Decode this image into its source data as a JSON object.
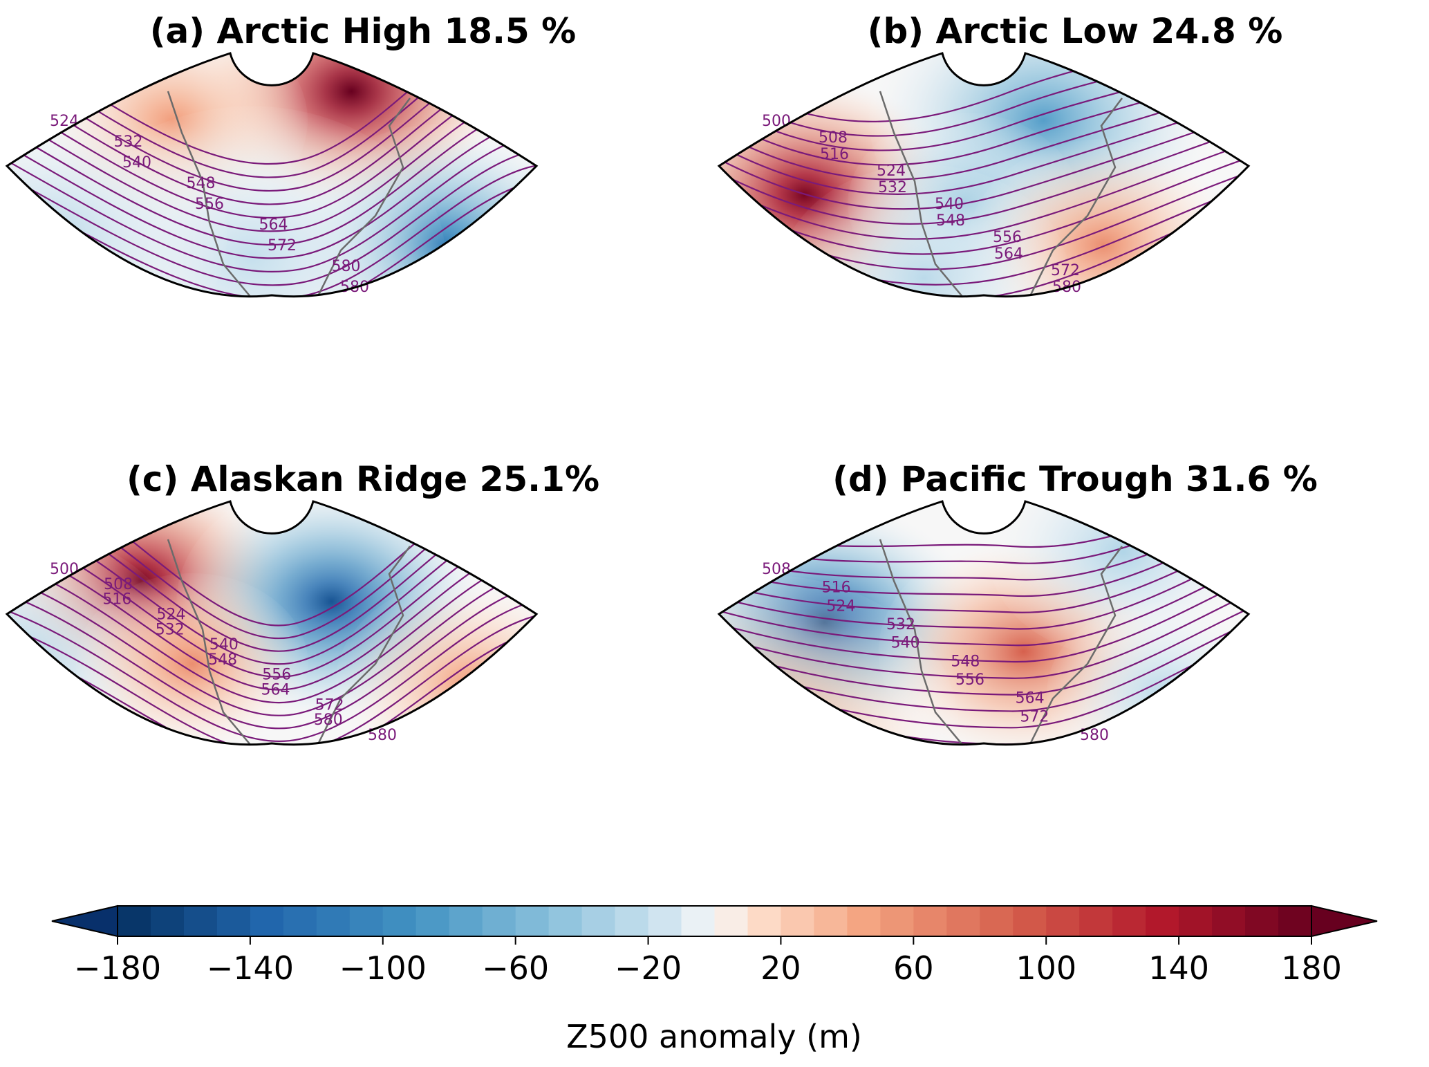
{
  "panels": [
    {
      "id": "a",
      "title": "(a) Arctic High 18.5 %",
      "anomalies": [
        {
          "lon": -85,
          "lat": 75,
          "value": 180,
          "spread": 0.16
        },
        {
          "lon": -130,
          "lat": 68,
          "value": 50,
          "spread": 0.14
        },
        {
          "lon": -62,
          "lat": 38,
          "value": -110,
          "spread": 0.16
        },
        {
          "lon": -110,
          "lat": 35,
          "value": -20,
          "spread": 0.2
        },
        {
          "lon": -160,
          "lat": 40,
          "value": -25,
          "spread": 0.18
        }
      ],
      "contour_labels": [
        "524",
        "532",
        "540",
        "548",
        "556",
        "564",
        "572",
        "580",
        "580"
      ]
    },
    {
      "id": "b",
      "title": "(b) Arctic Low 24.8 %",
      "anomalies": [
        {
          "lon": -150,
          "lat": 50,
          "value": 170,
          "spread": 0.16
        },
        {
          "lon": -90,
          "lat": 68,
          "value": -80,
          "spread": 0.18
        },
        {
          "lon": -110,
          "lat": 48,
          "value": -45,
          "spread": 0.12
        },
        {
          "lon": -75,
          "lat": 38,
          "value": 60,
          "spread": 0.14
        },
        {
          "lon": -120,
          "lat": 30,
          "value": -25,
          "spread": 0.15
        }
      ],
      "contour_labels": [
        "500",
        "508",
        "516",
        "524",
        "532",
        "540",
        "548",
        "556",
        "564",
        "572",
        "580"
      ]
    },
    {
      "id": "c",
      "title": "(c) Alaskan Ridge 25.1%",
      "anomalies": [
        {
          "lon": -138,
          "lat": 65,
          "value": 170,
          "spread": 0.15
        },
        {
          "lon": -90,
          "lat": 60,
          "value": -150,
          "spread": 0.16
        },
        {
          "lon": -55,
          "lat": 40,
          "value": 50,
          "spread": 0.14
        },
        {
          "lon": -170,
          "lat": 45,
          "value": -30,
          "spread": 0.18
        },
        {
          "lon": -125,
          "lat": 45,
          "value": 60,
          "spread": 0.12
        }
      ],
      "contour_labels": [
        "500",
        "508",
        "516",
        "524",
        "532",
        "540",
        "548",
        "556",
        "564",
        "572",
        "580",
        "580"
      ]
    },
    {
      "id": "d",
      "title": "(d) Pacific Trough 31.6 %",
      "anomalies": [
        {
          "lon": -145,
          "lat": 55,
          "value": -160,
          "spread": 0.16
        },
        {
          "lon": -95,
          "lat": 48,
          "value": 90,
          "spread": 0.15
        },
        {
          "lon": -70,
          "lat": 72,
          "value": -30,
          "spread": 0.14
        },
        {
          "lon": -160,
          "lat": 30,
          "value": 40,
          "spread": 0.2
        },
        {
          "lon": -60,
          "lat": 38,
          "value": -25,
          "spread": 0.12
        }
      ],
      "contour_labels": [
        "508",
        "516",
        "524",
        "532",
        "540",
        "548",
        "556",
        "564",
        "572",
        "580"
      ]
    }
  ],
  "colorbar": {
    "label": "Z500 anomaly (m)",
    "min": -180,
    "max": 180,
    "step": 10,
    "extend": "both",
    "ticks": [
      "−180",
      "−140",
      "−100",
      "−60",
      "−20",
      "20",
      "60",
      "100",
      "140",
      "180"
    ],
    "tick_values": [
      -180,
      -140,
      -100,
      -60,
      -20,
      20,
      60,
      100,
      140,
      180
    ],
    "colormap": "RdBu_r",
    "colors": {
      "low_end": "#08306b",
      "blue": "#2166ac",
      "light_blue": "#92c5de",
      "neutral": "#f7f7f7",
      "light_red": "#f4a582",
      "red": "#d6604d",
      "high_end": "#67001f"
    }
  },
  "map": {
    "contour_color": "#7a1a7a",
    "coastline_color": "#6b6b6b",
    "frame_color": "#000000"
  }
}
